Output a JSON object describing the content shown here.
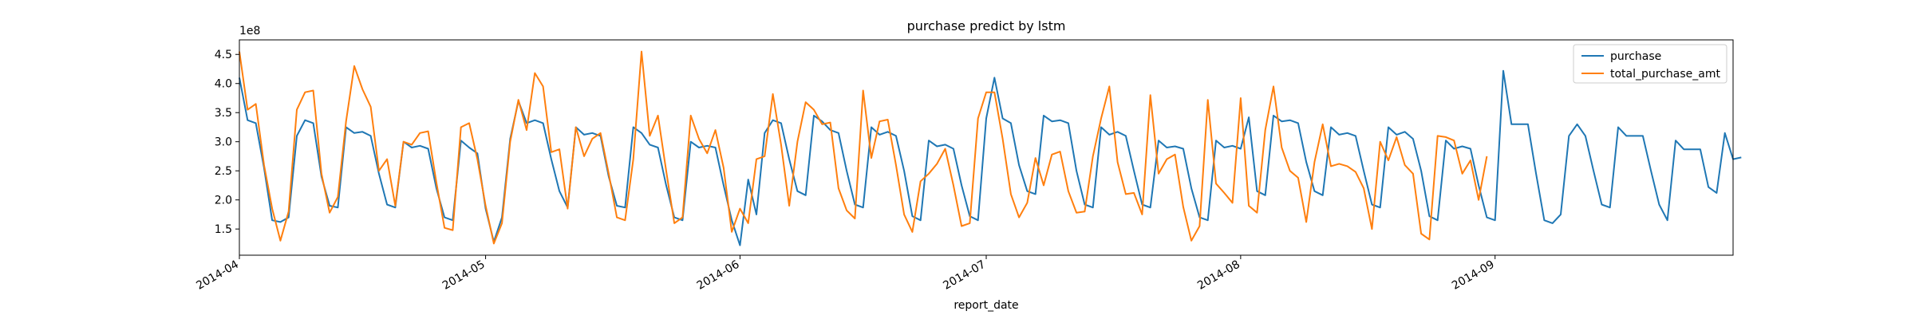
{
  "chart_data": {
    "type": "line",
    "title": "purchase predict by lstm",
    "xlabel": "report_date",
    "ylabel": "",
    "y_multiplier_label": "1e8",
    "x_start": "2014-04-01",
    "x_end": "2014-09-30",
    "ylim": [
      1.05,
      4.75
    ],
    "yticks": [
      1.5,
      2.0,
      2.5,
      3.0,
      3.5,
      4.0,
      4.5
    ],
    "ytick_labels": [
      "1.5",
      "2.0",
      "2.5",
      "3.0",
      "3.5",
      "4.0",
      "4.5"
    ],
    "xticks": [
      {
        "date": "2014-04-01",
        "label": "2014-04"
      },
      {
        "date": "2014-05-01",
        "label": "2014-05"
      },
      {
        "date": "2014-06-01",
        "label": "2014-06"
      },
      {
        "date": "2014-07-01",
        "label": "2014-07"
      },
      {
        "date": "2014-08-01",
        "label": "2014-08"
      },
      {
        "date": "2014-09-01",
        "label": "2014-09"
      }
    ],
    "legend_position": "top-right",
    "series": [
      {
        "name": "purchase",
        "color": "#1f77b4",
        "values": [
          4.1,
          3.37,
          3.32,
          2.55,
          1.65,
          1.62,
          1.7,
          3.1,
          3.37,
          3.32,
          2.4,
          1.9,
          1.87,
          3.25,
          3.15,
          3.17,
          3.1,
          2.45,
          1.92,
          1.87,
          3.0,
          2.9,
          2.93,
          2.88,
          2.2,
          1.7,
          1.65,
          3.02,
          2.9,
          2.8,
          1.85,
          1.28,
          1.7,
          3.05,
          3.7,
          3.32,
          3.37,
          3.32,
          2.7,
          2.15,
          1.87,
          3.25,
          3.12,
          3.15,
          3.1,
          2.4,
          1.9,
          1.87,
          3.25,
          3.15,
          2.95,
          2.9,
          2.25,
          1.7,
          1.65,
          3.0,
          2.9,
          2.93,
          2.9,
          2.25,
          1.65,
          1.22,
          2.35,
          1.75,
          3.15,
          3.37,
          3.32,
          2.7,
          2.15,
          2.08,
          3.45,
          3.35,
          3.2,
          3.15,
          2.5,
          1.92,
          1.87,
          3.25,
          3.12,
          3.17,
          3.1,
          2.5,
          1.72,
          1.65,
          3.02,
          2.92,
          2.95,
          2.88,
          2.25,
          1.72,
          1.65,
          3.4,
          4.1,
          3.4,
          3.32,
          2.6,
          2.15,
          2.1,
          3.45,
          3.35,
          3.37,
          3.32,
          2.5,
          1.92,
          1.87,
          3.25,
          3.12,
          3.17,
          3.1,
          2.5,
          1.92,
          1.87,
          3.02,
          2.9,
          2.92,
          2.88,
          2.2,
          1.7,
          1.65,
          3.02,
          2.9,
          2.93,
          2.88,
          3.42,
          2.15,
          2.08,
          3.45,
          3.35,
          3.37,
          3.32,
          2.65,
          2.15,
          2.08,
          3.25,
          3.12,
          3.15,
          3.1,
          2.5,
          1.92,
          1.87,
          3.25,
          3.12,
          3.17,
          3.05,
          2.5,
          1.72,
          1.65,
          3.02,
          2.88,
          2.92,
          2.88,
          2.25,
          1.7,
          1.65,
          4.22,
          3.3,
          3.3,
          3.3,
          2.45,
          1.65,
          1.6,
          1.75,
          3.1,
          3.3,
          3.1,
          2.5,
          1.92,
          1.87,
          3.25,
          3.1,
          3.1,
          3.1,
          2.5,
          1.92,
          1.65,
          3.02,
          2.87,
          2.87,
          2.87,
          2.22,
          2.12,
          3.15,
          2.7,
          2.73
        ]
      },
      {
        "name": "total_purchase_amt",
        "color": "#ff7f0e",
        "values": [
          4.55,
          3.55,
          3.65,
          2.6,
          1.85,
          1.3,
          1.8,
          3.55,
          3.85,
          3.88,
          2.45,
          1.78,
          2.05,
          3.35,
          4.3,
          3.9,
          3.6,
          2.5,
          2.7,
          1.9,
          3.0,
          2.95,
          3.15,
          3.18,
          2.3,
          1.52,
          1.48,
          3.25,
          3.32,
          2.7,
          1.9,
          1.25,
          1.6,
          3.0,
          3.72,
          3.2,
          4.18,
          3.95,
          2.82,
          2.87,
          1.85,
          3.25,
          2.75,
          3.05,
          3.15,
          2.45,
          1.7,
          1.65,
          2.7,
          4.55,
          3.1,
          3.45,
          2.5,
          1.6,
          1.7,
          3.45,
          3.05,
          2.8,
          3.2,
          2.55,
          1.45,
          1.85,
          1.6,
          2.7,
          2.75,
          3.82,
          2.95,
          1.9,
          3.0,
          3.68,
          3.55,
          3.3,
          3.33,
          2.2,
          1.82,
          1.68,
          3.88,
          2.72,
          3.35,
          3.38,
          2.6,
          1.75,
          1.45,
          2.32,
          2.45,
          2.62,
          2.88,
          2.25,
          1.55,
          1.6,
          3.4,
          3.85,
          3.85,
          3.05,
          2.1,
          1.7,
          1.95,
          2.72,
          2.25,
          2.78,
          2.83,
          2.15,
          1.78,
          1.8,
          2.75,
          3.4,
          3.95,
          2.65,
          2.1,
          2.12,
          1.75,
          3.8,
          2.45,
          2.7,
          2.78,
          1.88,
          1.3,
          1.55,
          3.72,
          2.28,
          2.12,
          1.95,
          3.75,
          1.9,
          1.78,
          3.2,
          3.95,
          2.9,
          2.5,
          2.38,
          1.62,
          2.65,
          3.3,
          2.58,
          2.62,
          2.58,
          2.48,
          2.2,
          1.5,
          3.0,
          2.68,
          3.08,
          2.6,
          2.45,
          1.42,
          1.32,
          3.1,
          3.08,
          3.02,
          2.45,
          2.68,
          2.0,
          2.75
        ]
      }
    ]
  }
}
